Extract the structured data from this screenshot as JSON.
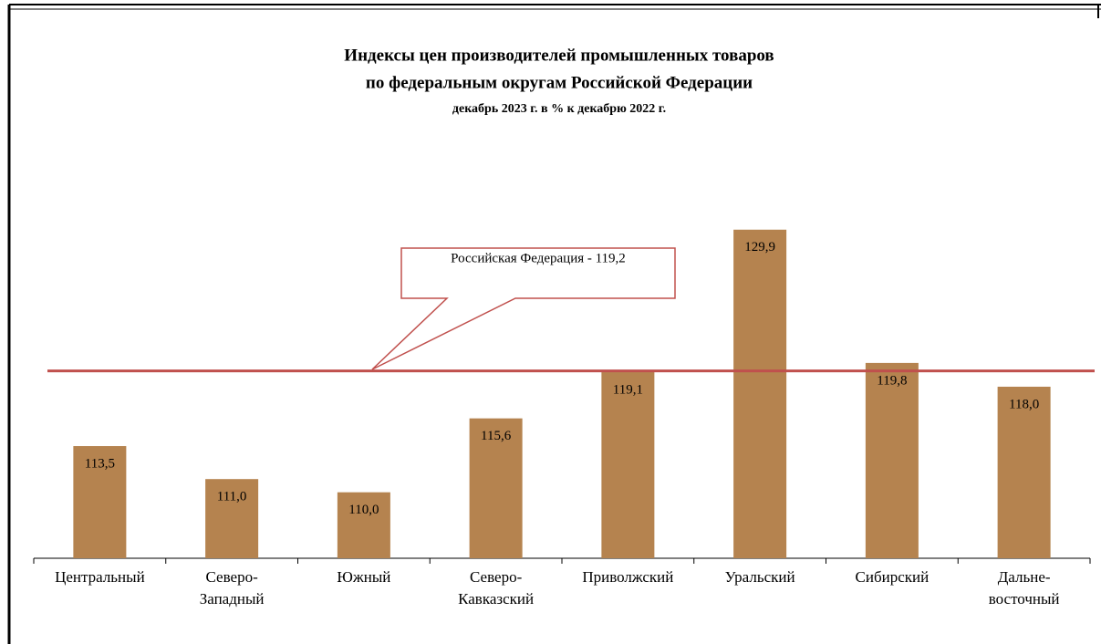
{
  "chart_data": {
    "type": "bar",
    "title": "Индексы цен производителей  промышленных товаров",
    "subtitle": "по федеральным  округам  Российской  Федерации",
    "note": "декабрь 2023 г. в % к декабрю 2022 г.",
    "categories": [
      [
        "Центральный"
      ],
      [
        "Северо-",
        "Западный"
      ],
      [
        "Южный"
      ],
      [
        "Северо-",
        "Кавказский"
      ],
      [
        "Приволжский"
      ],
      [
        "Уральский"
      ],
      [
        "Сибирский"
      ],
      [
        "Дальне-",
        "восточный"
      ]
    ],
    "values": [
      113.5,
      111.0,
      110.0,
      115.6,
      119.1,
      129.9,
      119.8,
      118.0
    ],
    "value_labels": [
      "113,5",
      "111,0",
      "110,0",
      "115,6",
      "119,1",
      "129,9",
      "119,8",
      "118,0"
    ],
    "color": "#b5834f",
    "ylim": [
      105,
      135
    ],
    "reference": {
      "value": 119.2,
      "label": "Российская Федерация - 119,2",
      "color": "#c0504d"
    }
  }
}
